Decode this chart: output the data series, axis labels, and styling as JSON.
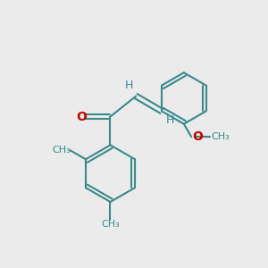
{
  "background_color": "#ebebeb",
  "bond_color": "#3a8a8a",
  "o_color": "#cc0000",
  "line_width": 1.5,
  "font_size": 9.0,
  "figsize": [
    3.0,
    3.0
  ],
  "dpi": 100,
  "xlim": [
    -0.5,
    5.5
  ],
  "ylim": [
    -0.3,
    6.3
  ]
}
